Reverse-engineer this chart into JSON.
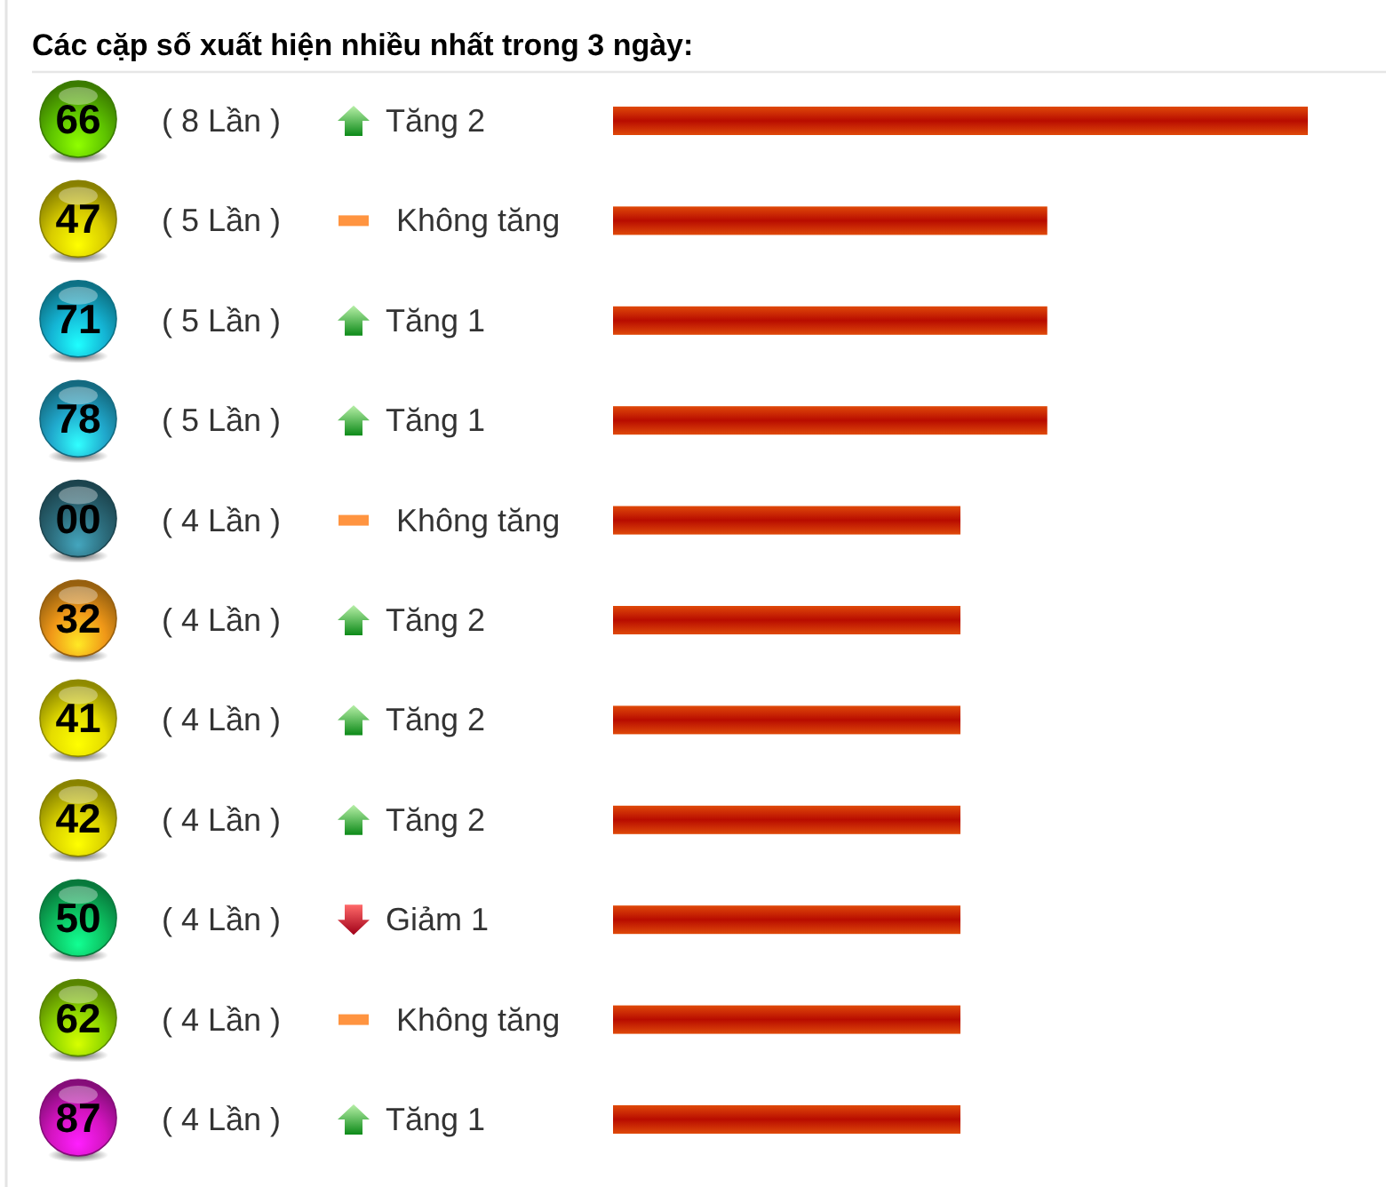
{
  "chart_data": {
    "type": "bar",
    "title": "Các cặp số xuất hiện nhiều nhất trong 3 ngày:",
    "orientation": "horizontal",
    "categories": [
      "66",
      "47",
      "71",
      "78",
      "00",
      "32",
      "41",
      "42",
      "50",
      "62",
      "87"
    ],
    "values": [
      8,
      5,
      5,
      5,
      4,
      4,
      4,
      4,
      4,
      4,
      4
    ],
    "color": "#b80c00",
    "value_labels": [
      "( 8 Lần )",
      "( 5 Lần )",
      "( 5 Lần )",
      "( 5 Lần )",
      "( 4 Lần )",
      "( 4 Lần )",
      "( 4 Lần )",
      "( 4 Lần )",
      "( 4 Lần )",
      "( 4 Lần )",
      "( 4 Lần )"
    ],
    "xlim": [
      0,
      8
    ],
    "tick_labels": "y",
    "annotations": [
      "Tăng 2",
      "Không tăng",
      "Tăng 1",
      "Tăng 1",
      "Không tăng",
      "Tăng 2",
      "Tăng 2",
      "Tăng 2",
      "Giảm 1",
      "Không tăng",
      "Tăng 1"
    ]
  }
}
